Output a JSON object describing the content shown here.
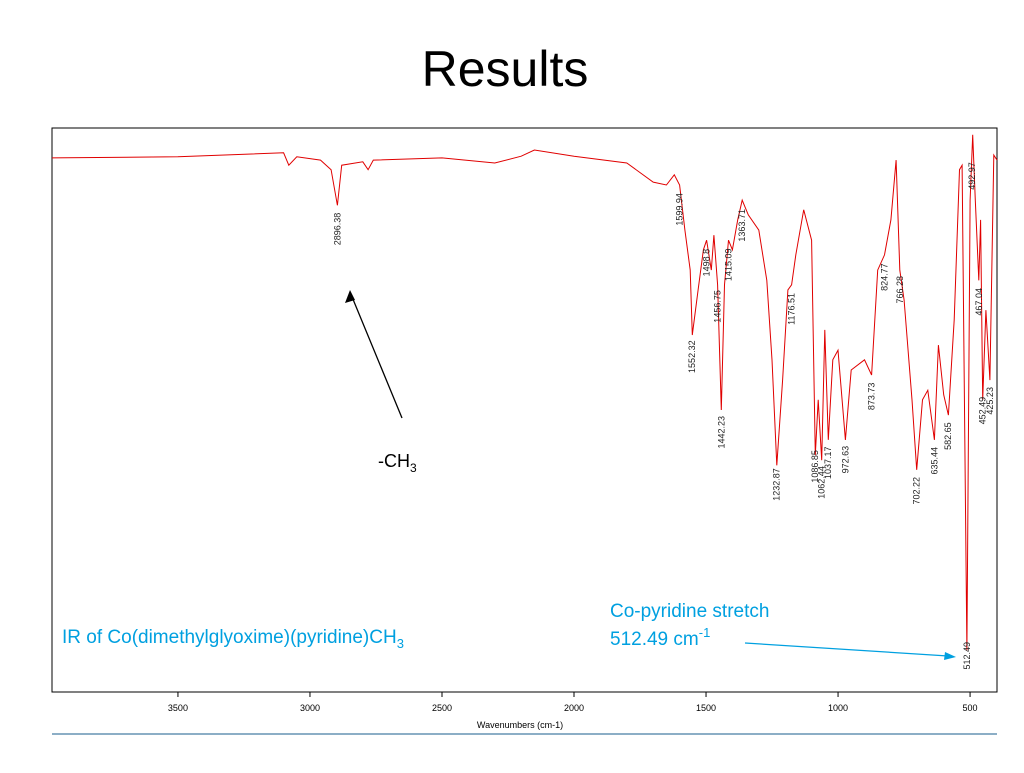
{
  "title": "Results",
  "chart_data": {
    "type": "line",
    "x": [
      3977,
      3500,
      3100,
      3080,
      3050,
      2960,
      2920,
      2896,
      2880,
      2800,
      2780,
      2760,
      2500,
      2300,
      2200,
      2150,
      2000,
      1800,
      1700,
      1650,
      1620,
      1600,
      1580,
      1560,
      1552,
      1530,
      1510,
      1498,
      1480,
      1470,
      1456,
      1442,
      1430,
      1415,
      1400,
      1380,
      1363,
      1340,
      1300,
      1270,
      1250,
      1232,
      1210,
      1190,
      1176,
      1160,
      1130,
      1100,
      1086,
      1075,
      1062,
      1050,
      1037,
      1020,
      1000,
      972,
      950,
      900,
      873,
      850,
      824,
      800,
      780,
      766,
      750,
      720,
      702,
      680,
      660,
      635,
      620,
      600,
      582,
      560,
      540,
      530,
      512,
      500,
      490,
      480,
      467,
      460,
      452,
      440,
      425,
      410,
      398
    ],
    "values": [
      94.7,
      94.9,
      95.6,
      93.4,
      94.9,
      94.3,
      92.6,
      86.3,
      93.4,
      94.0,
      92.6,
      94.3,
      94.7,
      93.8,
      95.0,
      96.1,
      95.0,
      93.8,
      90.4,
      89.9,
      91.7,
      89.9,
      81.9,
      74.8,
      63.3,
      71.3,
      78.4,
      80.1,
      74.8,
      81.0,
      72.2,
      50.0,
      72.2,
      80.1,
      78.4,
      83.7,
      87.2,
      84.6,
      81.9,
      73.0,
      58.9,
      40.2,
      55.3,
      71.3,
      72.2,
      77.5,
      85.5,
      80.1,
      42.0,
      51.8,
      41.1,
      64.2,
      44.7,
      58.9,
      60.6,
      44.7,
      57.1,
      58.9,
      56.2,
      74.8,
      77.5,
      83.7,
      94.3,
      74.8,
      69.5,
      51.8,
      39.4,
      51.8,
      53.5,
      44.7,
      61.5,
      52.7,
      49.1,
      66.0,
      92.6,
      93.4,
      7.4,
      87.2,
      98.8,
      87.2,
      73.0,
      83.7,
      51.8,
      67.7,
      55.3,
      95.2,
      94.3
    ],
    "color": "#e00000",
    "xlim": [
      3977,
      398
    ],
    "xticks": [
      3500,
      3000,
      2500,
      2000,
      1500,
      1000,
      500
    ],
    "ylim": [
      0,
      100
    ],
    "x_label": "Wavenumbers (cm-1)",
    "peak_labels": [
      2896.38,
      1599.94,
      1552.32,
      1498.8,
      1456.75,
      1442.23,
      1415.09,
      1363.71,
      1232.87,
      1176.51,
      1086.85,
      1062.44,
      1037.17,
      972.63,
      873.73,
      824.77,
      766.28,
      702.22,
      635.44,
      582.65,
      512.49,
      492.97,
      467.04,
      452.49,
      425.23
    ],
    "annotations": {
      "methyl": {
        "text": "-CH",
        "sub": "3"
      },
      "caption": {
        "text": "IR of Co(dimethylglyoxime)(pyridine)CH",
        "sub": "3"
      },
      "stretch": {
        "line1": "Co-pyridine stretch",
        "text": "512.49 cm",
        "sup": "-1"
      }
    }
  }
}
